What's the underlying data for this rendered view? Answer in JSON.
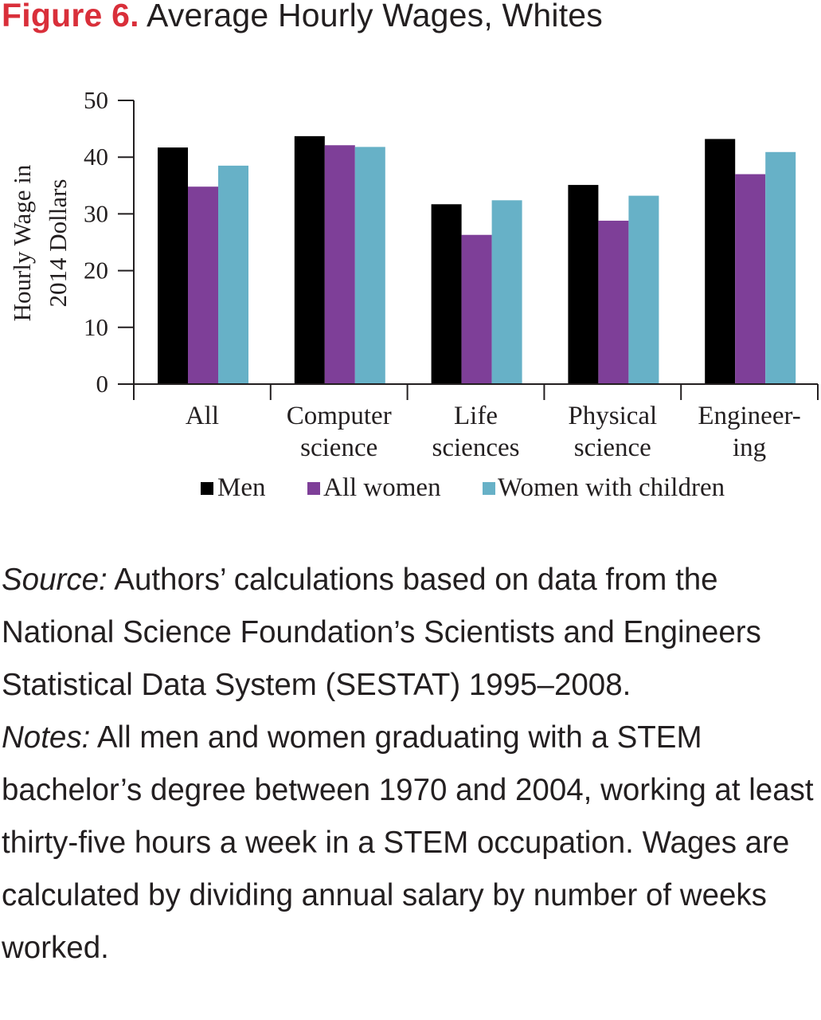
{
  "figure": {
    "label": "Figure 6.",
    "title": "Average Hourly Wages, Whites"
  },
  "chart_data": {
    "type": "bar",
    "title": "Average Hourly Wages, Whites",
    "ylabel_lines": [
      "Hourly Wage in",
      "2014 Dollars"
    ],
    "xlabel": "",
    "ylim": [
      0,
      50
    ],
    "yticks": [
      0,
      10,
      20,
      30,
      40,
      50
    ],
    "categories": [
      "All",
      "Computer science",
      "Life sciences",
      "Physical science",
      "Engineering"
    ],
    "category_label_lines": [
      [
        "All"
      ],
      [
        "Computer",
        "science"
      ],
      [
        "Life",
        "sciences"
      ],
      [
        "Physical",
        "science"
      ],
      [
        "Engineer-",
        "ing"
      ]
    ],
    "series": [
      {
        "name": "Men",
        "color": "#000000",
        "values": [
          41.7,
          43.7,
          31.7,
          35.1,
          43.2
        ]
      },
      {
        "name": "All women",
        "color": "#7e3f98",
        "values": [
          34.8,
          42.1,
          26.3,
          28.8,
          37.0
        ]
      },
      {
        "name": "Women with children",
        "color": "#67b1c7",
        "values": [
          38.5,
          41.8,
          32.4,
          33.2,
          40.9
        ]
      }
    ],
    "grid": false,
    "legend_position": "bottom"
  },
  "caption": {
    "source_label": "Source:",
    "source_text": "Authors’ calculations based on data from the National Science Foundation’s Scientists and Engineers Statistical Data System (SESTAT) 1995–2008.",
    "notes_label": "Notes:",
    "notes_text": "All men and women graduating with a STEM bachelor’s degree between 1970 and 2004, working at least thirty-five hours a week in a STEM occupation. Wages are calculated by dividing annual salary by number of weeks worked."
  }
}
